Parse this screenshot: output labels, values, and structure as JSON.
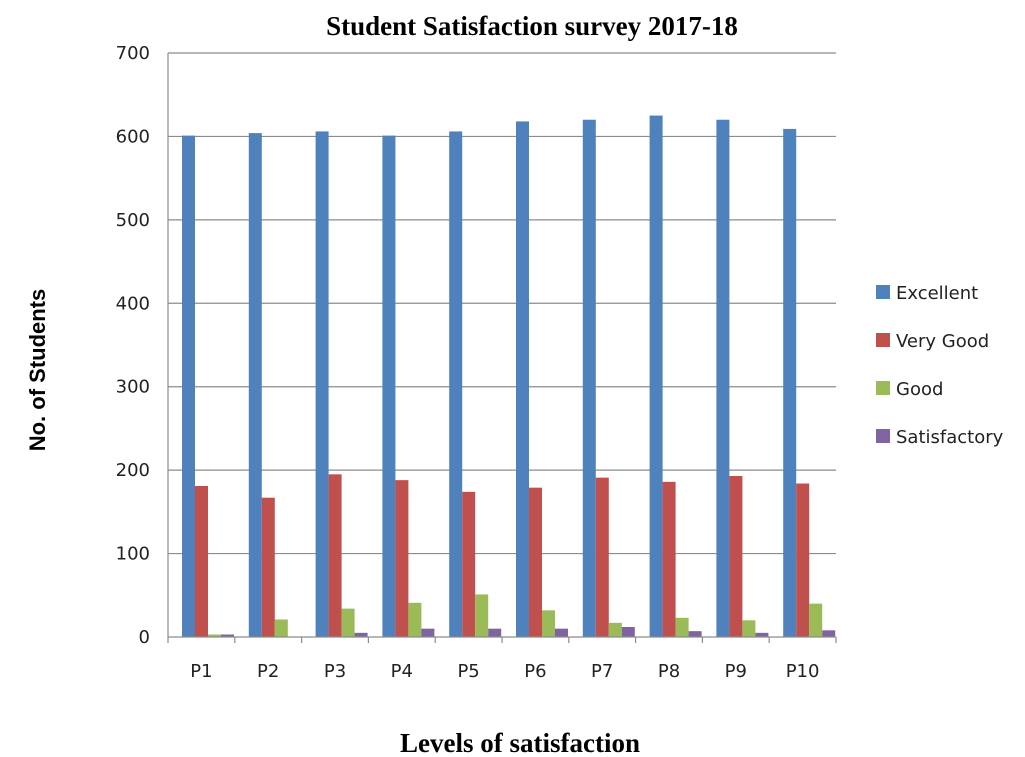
{
  "chart_data": {
    "type": "bar",
    "title": "Student Satisfaction survey 2017-18",
    "xlabel": "Levels of satisfaction",
    "ylabel": "No. of Students",
    "categories": [
      "P1",
      "P2",
      "P3",
      "P4",
      "P5",
      "P6",
      "P7",
      "P8",
      "P9",
      "P10"
    ],
    "series": [
      {
        "name": "Excellent",
        "color": "#4f81bd",
        "values": [
          601,
          604,
          606,
          601,
          606,
          618,
          620,
          625,
          620,
          609
        ]
      },
      {
        "name": "Very Good",
        "color": "#c0504d",
        "values": [
          181,
          167,
          195,
          188,
          174,
          179,
          191,
          186,
          193,
          184
        ]
      },
      {
        "name": "Good",
        "color": "#9bbb59",
        "values": [
          3,
          21,
          34,
          41,
          51,
          32,
          17,
          23,
          20,
          40
        ]
      },
      {
        "name": "Satisfactory",
        "color": "#8064a2",
        "values": [
          3,
          0,
          5,
          10,
          10,
          10,
          12,
          7,
          5,
          8
        ]
      }
    ],
    "ylim": [
      0,
      700
    ],
    "yticks": [
      0,
      100,
      200,
      300,
      400,
      500,
      600,
      700
    ],
    "grid": true,
    "legend_position": "right"
  }
}
